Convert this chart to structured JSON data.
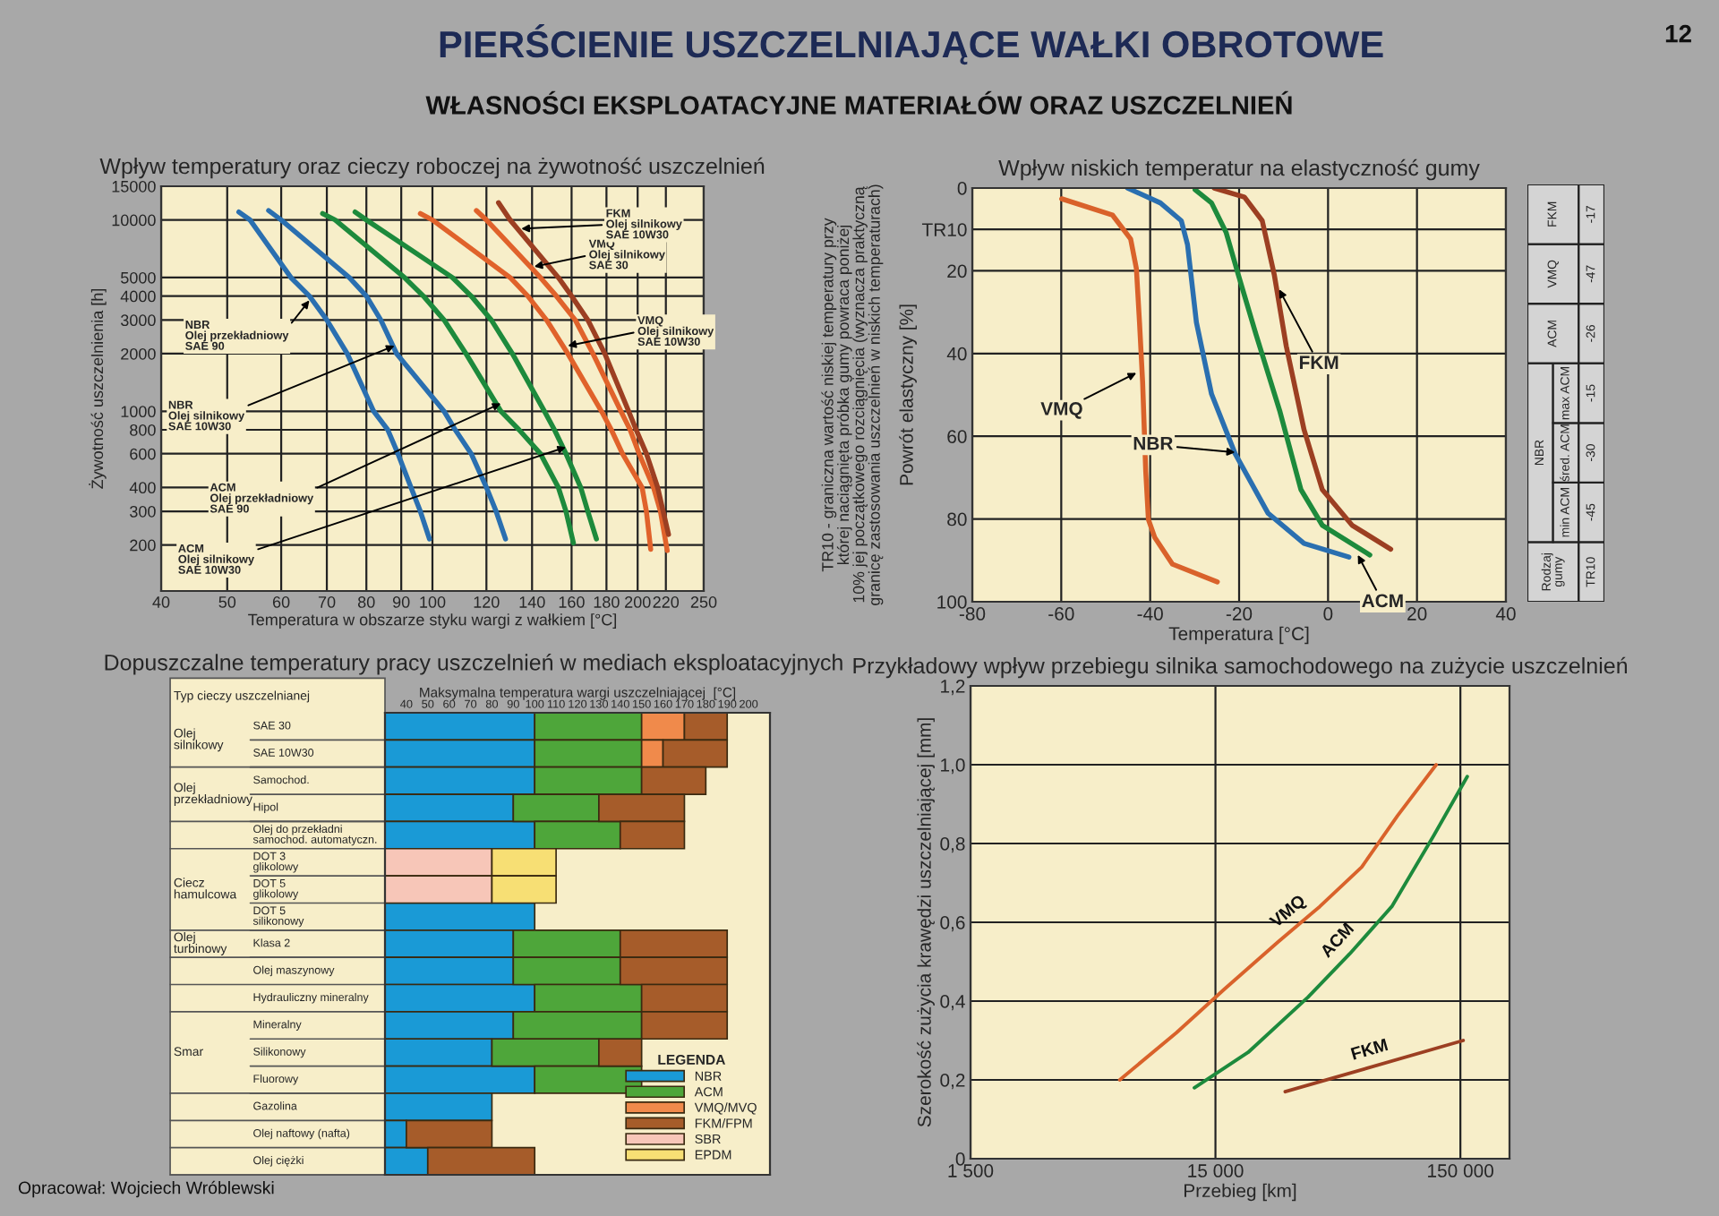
{
  "chart_data": [
    {
      "type": "other",
      "title": "PIERŚCIENIE USZCZELNIAJĄCE WAŁKI OBROTOWE",
      "subtitle": "WŁASNOŚCI EKSPLOATACYJNE MATERIAŁÓW ORAZ USZCZELNIEŃ",
      "annotations": [
        "12",
        "Opracował: Wojciech Wróblewski"
      ]
    },
    {
      "type": "line",
      "title": "Wpływ temperatury oraz cieczy roboczej na żywotność uszczelnień",
      "xlabel": "Temperatura w obszarze styku wargi z wałkiem [°C]",
      "ylabel": "Żywotność uszczelnienia [h]",
      "log": "xy",
      "xlim": [
        40,
        250
      ],
      "xticks": [
        40,
        50,
        60,
        70,
        80,
        90,
        100,
        120,
        140,
        160,
        180,
        200,
        220,
        250
      ],
      "ylim": [
        115,
        15000
      ],
      "yticks": [
        200,
        300,
        400,
        600,
        800,
        1000,
        2000,
        3000,
        4000,
        5000,
        10000,
        15000
      ],
      "grid": true,
      "series": [
        {
          "color": "#2a6fb0",
          "x": [
            52,
            54,
            62,
            66,
            70,
            75,
            82,
            86,
            89,
            93,
            96,
            99
          ],
          "values": [
            11000,
            10000,
            5000,
            4000,
            3000,
            2000,
            1000,
            800,
            600,
            400,
            300,
            215
          ]
        },
        {
          "color": "#2a6fb0",
          "x": [
            57.5,
            60,
            75.5,
            80,
            84,
            88.6,
            104,
            108,
            114,
            120,
            124,
            128
          ],
          "values": [
            11200,
            10000,
            5000,
            4000,
            3000,
            2000,
            1000,
            800,
            600,
            400,
            300,
            215
          ]
        },
        {
          "color": "#1d8a3c",
          "x": [
            69,
            72,
            91,
            97,
            104,
            112,
            126,
            134,
            144,
            153,
            157,
            161
          ],
          "values": [
            10800,
            10000,
            5000,
            4000,
            3000,
            2000,
            1000,
            800,
            600,
            400,
            300,
            205
          ]
        },
        {
          "color": "#1d8a3c",
          "x": [
            77,
            80,
            107,
            114,
            122,
            131,
            146,
            151,
            157,
            165,
            169,
            174
          ],
          "values": [
            11000,
            10000,
            5000,
            4000,
            3000,
            2000,
            1000,
            800,
            600,
            400,
            300,
            215
          ]
        },
        {
          "color": "#e0622b",
          "x": [
            96,
            100,
            130,
            138,
            147,
            158,
            177,
            183,
            190,
            203,
            206,
            209
          ],
          "values": [
            10800,
            10000,
            5000,
            4000,
            3000,
            2000,
            1000,
            800,
            600,
            400,
            300,
            190
          ]
        },
        {
          "color": "#e0622b",
          "x": [
            116,
            120,
            144,
            152,
            162,
            172,
            189,
            195,
            201,
            211,
            216,
            221
          ],
          "values": [
            11200,
            10000,
            5000,
            4000,
            3000,
            2000,
            1000,
            800,
            600,
            400,
            300,
            187
          ]
        },
        {
          "color": "#9c3f22",
          "x": [
            125,
            130,
            153,
            160,
            169,
            179,
            194,
            199,
            206,
            214,
            218,
            222
          ],
          "values": [
            12300,
            10000,
            5000,
            4000,
            3000,
            2000,
            1000,
            800,
            600,
            400,
            300,
            227
          ]
        }
      ],
      "annotations": [
        {
          "text": "NBR\nOlej przekładniowy\nSAE 90",
          "x": 66,
          "y": 3800
        },
        {
          "text": "NBR\nOlej silnikowy\nSAE 10W30",
          "x": 88,
          "y": 2200
        },
        {
          "text": "ACM\nOlej przekładniowy\nSAE 90",
          "x": 126,
          "y": 1100
        },
        {
          "text": "ACM\nOlej silnikowy\nSAE 10W30",
          "x": 157,
          "y": 650
        },
        {
          "text": "VMQ\nOlej silnikowy\nSAE 10W30",
          "x": 158,
          "y": 2200
        },
        {
          "text": "VMQ\nOlej silnikowy\nSAE 30",
          "x": 141,
          "y": 5700
        },
        {
          "text": "FKM\nOlej silnikowy\nSAE 10W30",
          "x": 135,
          "y": 9000
        }
      ]
    },
    {
      "type": "line",
      "title": "Wpływ niskich temperatur na elastyczność gumy",
      "xlabel": "Temperatura [°C]",
      "ylabel": "Powrót elastyczny [%]",
      "xlim": [
        -80,
        40
      ],
      "xticks": [
        -80,
        -60,
        -40,
        -20,
        0,
        20,
        40
      ],
      "ylim": [
        100,
        0
      ],
      "yticks": [
        0,
        {
          "value": 10,
          "label": "TR10"
        },
        20,
        40,
        60,
        80,
        100
      ],
      "grid": true,
      "series": [
        {
          "color": "#d9622b",
          "x": [
            -59.9,
            -48.5,
            -44.4,
            -43.1,
            -42.4,
            -41.7,
            -41.0,
            -40.4,
            -39.0,
            -35.0,
            -24.9
          ],
          "values": [
            2.6,
            6.5,
            12.3,
            19.5,
            32.5,
            46.9,
            68.5,
            80.1,
            84.4,
            90.9,
            95.2
          ]
        },
        {
          "color": "#2a6fb0",
          "x": [
            -45.1,
            -37.7,
            -33.0,
            -31.6,
            -29.6,
            -26.2,
            -20.9,
            -13.5,
            -5.4,
            4.7
          ],
          "values": [
            0,
            3.6,
            7.9,
            13.7,
            32.5,
            49.8,
            64.2,
            78.6,
            85.9,
            89.2
          ]
        },
        {
          "color": "#1d8a3c",
          "x": [
            -29.9,
            -26.2,
            -22.9,
            -20.2,
            -16.2,
            -10.8,
            -6.1,
            -1.3,
            9.4
          ],
          "values": [
            0.4,
            3.6,
            10.8,
            20.9,
            35.4,
            54.1,
            72.9,
            81.5,
            88.7
          ]
        },
        {
          "color": "#9c3f22",
          "x": [
            -25.6,
            -18.8,
            -14.8,
            -12.1,
            -9.4,
            -5.4,
            -1.3,
            5.4,
            14.1
          ],
          "values": [
            0,
            2.2,
            7.9,
            20.9,
            38.2,
            58.4,
            72.9,
            81.5,
            87.3
          ]
        }
      ],
      "annotations": [
        "TR10 - graniczna wartość niskiej temperatury przy\nktórej naciągnięta próbka gumy powraca poniżej\n10% jej początkowego rozciągnięcia (wyznacza praktyczną\ngranicę zastosowania uszczelnień w niskich temperaturach)",
        {
          "text": "VMQ",
          "x": -43.1,
          "y": 44.7
        },
        {
          "text": "NBR",
          "x": -20.9,
          "y": 63.9
        },
        {
          "text": "FKM",
          "x": -11,
          "y": 24.5
        },
        {
          "text": "ACM",
          "x": 6.7,
          "y": 88.7
        }
      ]
    },
    {
      "type": "other",
      "annotations": [
        "Rodzaj\ngumy",
        "TR10",
        "NBR",
        "min ACM",
        "-45",
        "śred. ACM",
        "-30",
        "max ACM",
        "-15",
        "ACM",
        "-26",
        "VMQ",
        "-47",
        "FKM",
        "-17"
      ]
    },
    {
      "type": "bar",
      "orientation": "horizontal",
      "title": "Dopuszczalne temperatury pracy uszczelnień w mediach eksploatacyjnych",
      "xlabel": "Maksymalna temperatura wargi uszczelniającej  [°C]",
      "xlim": [
        30,
        210
      ],
      "xticks": [
        40,
        50,
        60,
        70,
        80,
        90,
        100,
        110,
        120,
        130,
        140,
        150,
        160,
        170,
        180,
        190,
        200
      ],
      "legend": "bottom right",
      "legend_title": "LEGENDA",
      "categories": [
        "SAE 30",
        "SAE 10W30",
        "Samochod.",
        "Hipol",
        "Olej do przekładni\nsamochod. automatyczn.",
        "DOT 3\nglikolowy",
        "DOT 5\nglikolowy",
        "DOT 5\nsilikonowy",
        "Klasa 2",
        "Olej maszynowy",
        "Hydrauliczny mineralny",
        "Mineralny",
        "Silikonowy",
        "Fluorowy",
        "Gazolina",
        "Olej naftowy (nafta)",
        "Olej ciężki"
      ],
      "series": [
        {
          "name": "NBR",
          "color": "#1a9ad6",
          "base": [
            30,
            30,
            30,
            30,
            30,
            null,
            null,
            30,
            30,
            30,
            30,
            30,
            30,
            30,
            30,
            30,
            30
          ],
          "values": [
            70,
            70,
            70,
            60,
            70,
            null,
            null,
            70,
            60,
            60,
            70,
            60,
            50,
            70,
            50,
            10,
            20
          ]
        },
        {
          "name": "ACM",
          "color": "#4ea63a",
          "base": [
            100,
            100,
            100,
            90,
            100,
            null,
            null,
            null,
            90,
            90,
            100,
            90,
            80,
            100,
            null,
            null,
            null
          ],
          "values": [
            50,
            50,
            50,
            40,
            40,
            null,
            null,
            null,
            50,
            50,
            50,
            60,
            50,
            50,
            null,
            null,
            null
          ]
        },
        {
          "name": "VMQ/MVQ",
          "color": "#f08a4b",
          "base": [
            150,
            150,
            null,
            null,
            null,
            null,
            null,
            null,
            null,
            null,
            null,
            null,
            null,
            null,
            null,
            null,
            null
          ],
          "values": [
            20,
            10,
            null,
            null,
            null,
            null,
            null,
            null,
            null,
            null,
            null,
            null,
            null,
            null,
            null,
            null,
            null
          ]
        },
        {
          "name": "FKM/FPM",
          "color": "#a65c2a",
          "base": [
            170,
            160,
            150,
            130,
            140,
            null,
            null,
            null,
            140,
            140,
            150,
            150,
            130,
            null,
            null,
            40,
            50
          ],
          "values": [
            20,
            30,
            30,
            40,
            30,
            null,
            null,
            null,
            50,
            50,
            40,
            40,
            20,
            null,
            null,
            40,
            50
          ]
        },
        {
          "name": "SBR",
          "color": "#f7c6b8",
          "base": [
            null,
            null,
            null,
            null,
            null,
            30,
            30,
            null,
            null,
            null,
            null,
            null,
            null,
            null,
            null,
            null,
            null
          ],
          "values": [
            null,
            null,
            null,
            null,
            null,
            50,
            50,
            null,
            null,
            null,
            null,
            null,
            null,
            null,
            null,
            null,
            null
          ]
        },
        {
          "name": "EPDM",
          "color": "#f7df74",
          "base": [
            null,
            null,
            null,
            null,
            null,
            80,
            80,
            null,
            null,
            null,
            null,
            null,
            null,
            null,
            null,
            null,
            null
          ],
          "values": [
            null,
            null,
            null,
            null,
            null,
            30,
            30,
            null,
            null,
            null,
            null,
            null,
            null,
            null,
            null,
            null,
            null
          ]
        }
      ],
      "annotations": [
        "Typ cieczy uszczelnianej",
        "Olej\nsilnikowy",
        "Olej\nprzekładniowy",
        "Ciecz\nhamulcowa",
        "Olej\nturbinowy",
        "Smar"
      ]
    },
    {
      "type": "line",
      "title": "Przykładowy wpływ przebiegu silnika samochodowego na zużycie uszczelnień",
      "xlabel": "Przebieg [km]",
      "ylabel": "Szerokość zużycia krawędzi uszczelniającej [mm]",
      "log": "x",
      "xlim": [
        1500,
        238000
      ],
      "xticks": [
        {
          "value": 1500,
          "label": "1 500"
        },
        {
          "value": 15000,
          "label": "15 000"
        },
        {
          "value": 150000,
          "label": "150 000"
        }
      ],
      "ylim": [
        0,
        1.2
      ],
      "yticks": [
        0,
        {
          "value": 0.2,
          "label": "0,2"
        },
        {
          "value": 0.4,
          "label": "0,4"
        },
        {
          "value": 0.6,
          "label": "0,6"
        },
        {
          "value": 0.8,
          "label": "0,8"
        },
        {
          "value": 1.0,
          "label": "1,0"
        },
        {
          "value": 1.2,
          "label": "1,2"
        }
      ],
      "grid": true,
      "series": [
        {
          "name": "VMQ",
          "color": "#d9622b",
          "x": [
            6100,
            10400,
            16300,
            27000,
            40000,
            59300,
            83000,
            119500
          ],
          "values": [
            0.2,
            0.32,
            0.43,
            0.55,
            0.64,
            0.74,
            0.87,
            1.0
          ]
        },
        {
          "name": "ACM",
          "color": "#1d8a3c",
          "x": [
            12300,
            20400,
            35800,
            53000,
            78700,
            116700,
            160000
          ],
          "values": [
            0.18,
            0.27,
            0.41,
            0.52,
            0.64,
            0.82,
            0.97
          ]
        },
        {
          "name": "FKM",
          "color": "#9c3f22",
          "x": [
            28900,
            154000
          ],
          "values": [
            0.17,
            0.3
          ]
        }
      ]
    }
  ]
}
